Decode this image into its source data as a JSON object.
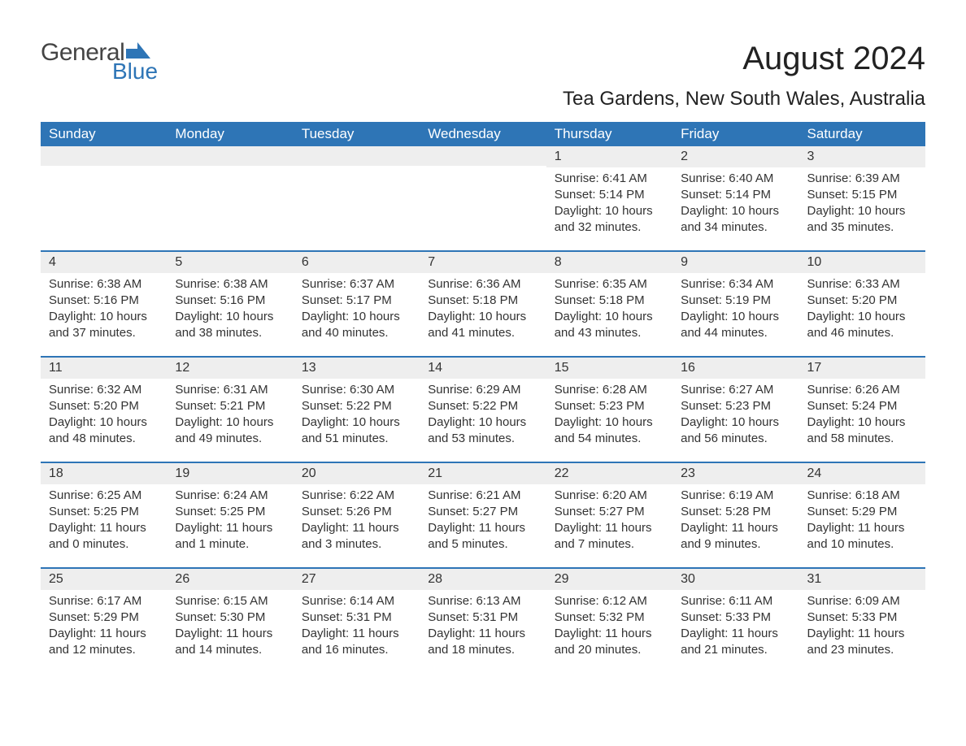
{
  "logo": {
    "text_general": "General",
    "text_blue": "Blue",
    "accent_color": "#2e75b6",
    "text_color_general": "#444444"
  },
  "title": "August 2024",
  "subtitle": "Tea Gardens, New South Wales, Australia",
  "colors": {
    "header_bg": "#2e75b6",
    "header_text": "#ffffff",
    "daynum_bg": "#eeeeee",
    "body_text": "#333333",
    "page_bg": "#ffffff",
    "week_divider": "#2e75b6"
  },
  "typography": {
    "title_fontsize": 40,
    "subtitle_fontsize": 24,
    "header_fontsize": 17,
    "body_fontsize": 15,
    "font_family": "Arial, Helvetica, sans-serif"
  },
  "calendar": {
    "type": "table",
    "columns": [
      "Sunday",
      "Monday",
      "Tuesday",
      "Wednesday",
      "Thursday",
      "Friday",
      "Saturday"
    ],
    "weeks": [
      [
        {
          "day": "",
          "sunrise": "",
          "sunset": "",
          "daylight": ""
        },
        {
          "day": "",
          "sunrise": "",
          "sunset": "",
          "daylight": ""
        },
        {
          "day": "",
          "sunrise": "",
          "sunset": "",
          "daylight": ""
        },
        {
          "day": "",
          "sunrise": "",
          "sunset": "",
          "daylight": ""
        },
        {
          "day": "1",
          "sunrise": "Sunrise: 6:41 AM",
          "sunset": "Sunset: 5:14 PM",
          "daylight": "Daylight: 10 hours and 32 minutes."
        },
        {
          "day": "2",
          "sunrise": "Sunrise: 6:40 AM",
          "sunset": "Sunset: 5:14 PM",
          "daylight": "Daylight: 10 hours and 34 minutes."
        },
        {
          "day": "3",
          "sunrise": "Sunrise: 6:39 AM",
          "sunset": "Sunset: 5:15 PM",
          "daylight": "Daylight: 10 hours and 35 minutes."
        }
      ],
      [
        {
          "day": "4",
          "sunrise": "Sunrise: 6:38 AM",
          "sunset": "Sunset: 5:16 PM",
          "daylight": "Daylight: 10 hours and 37 minutes."
        },
        {
          "day": "5",
          "sunrise": "Sunrise: 6:38 AM",
          "sunset": "Sunset: 5:16 PM",
          "daylight": "Daylight: 10 hours and 38 minutes."
        },
        {
          "day": "6",
          "sunrise": "Sunrise: 6:37 AM",
          "sunset": "Sunset: 5:17 PM",
          "daylight": "Daylight: 10 hours and 40 minutes."
        },
        {
          "day": "7",
          "sunrise": "Sunrise: 6:36 AM",
          "sunset": "Sunset: 5:18 PM",
          "daylight": "Daylight: 10 hours and 41 minutes."
        },
        {
          "day": "8",
          "sunrise": "Sunrise: 6:35 AM",
          "sunset": "Sunset: 5:18 PM",
          "daylight": "Daylight: 10 hours and 43 minutes."
        },
        {
          "day": "9",
          "sunrise": "Sunrise: 6:34 AM",
          "sunset": "Sunset: 5:19 PM",
          "daylight": "Daylight: 10 hours and 44 minutes."
        },
        {
          "day": "10",
          "sunrise": "Sunrise: 6:33 AM",
          "sunset": "Sunset: 5:20 PM",
          "daylight": "Daylight: 10 hours and 46 minutes."
        }
      ],
      [
        {
          "day": "11",
          "sunrise": "Sunrise: 6:32 AM",
          "sunset": "Sunset: 5:20 PM",
          "daylight": "Daylight: 10 hours and 48 minutes."
        },
        {
          "day": "12",
          "sunrise": "Sunrise: 6:31 AM",
          "sunset": "Sunset: 5:21 PM",
          "daylight": "Daylight: 10 hours and 49 minutes."
        },
        {
          "day": "13",
          "sunrise": "Sunrise: 6:30 AM",
          "sunset": "Sunset: 5:22 PM",
          "daylight": "Daylight: 10 hours and 51 minutes."
        },
        {
          "day": "14",
          "sunrise": "Sunrise: 6:29 AM",
          "sunset": "Sunset: 5:22 PM",
          "daylight": "Daylight: 10 hours and 53 minutes."
        },
        {
          "day": "15",
          "sunrise": "Sunrise: 6:28 AM",
          "sunset": "Sunset: 5:23 PM",
          "daylight": "Daylight: 10 hours and 54 minutes."
        },
        {
          "day": "16",
          "sunrise": "Sunrise: 6:27 AM",
          "sunset": "Sunset: 5:23 PM",
          "daylight": "Daylight: 10 hours and 56 minutes."
        },
        {
          "day": "17",
          "sunrise": "Sunrise: 6:26 AM",
          "sunset": "Sunset: 5:24 PM",
          "daylight": "Daylight: 10 hours and 58 minutes."
        }
      ],
      [
        {
          "day": "18",
          "sunrise": "Sunrise: 6:25 AM",
          "sunset": "Sunset: 5:25 PM",
          "daylight": "Daylight: 11 hours and 0 minutes."
        },
        {
          "day": "19",
          "sunrise": "Sunrise: 6:24 AM",
          "sunset": "Sunset: 5:25 PM",
          "daylight": "Daylight: 11 hours and 1 minute."
        },
        {
          "day": "20",
          "sunrise": "Sunrise: 6:22 AM",
          "sunset": "Sunset: 5:26 PM",
          "daylight": "Daylight: 11 hours and 3 minutes."
        },
        {
          "day": "21",
          "sunrise": "Sunrise: 6:21 AM",
          "sunset": "Sunset: 5:27 PM",
          "daylight": "Daylight: 11 hours and 5 minutes."
        },
        {
          "day": "22",
          "sunrise": "Sunrise: 6:20 AM",
          "sunset": "Sunset: 5:27 PM",
          "daylight": "Daylight: 11 hours and 7 minutes."
        },
        {
          "day": "23",
          "sunrise": "Sunrise: 6:19 AM",
          "sunset": "Sunset: 5:28 PM",
          "daylight": "Daylight: 11 hours and 9 minutes."
        },
        {
          "day": "24",
          "sunrise": "Sunrise: 6:18 AM",
          "sunset": "Sunset: 5:29 PM",
          "daylight": "Daylight: 11 hours and 10 minutes."
        }
      ],
      [
        {
          "day": "25",
          "sunrise": "Sunrise: 6:17 AM",
          "sunset": "Sunset: 5:29 PM",
          "daylight": "Daylight: 11 hours and 12 minutes."
        },
        {
          "day": "26",
          "sunrise": "Sunrise: 6:15 AM",
          "sunset": "Sunset: 5:30 PM",
          "daylight": "Daylight: 11 hours and 14 minutes."
        },
        {
          "day": "27",
          "sunrise": "Sunrise: 6:14 AM",
          "sunset": "Sunset: 5:31 PM",
          "daylight": "Daylight: 11 hours and 16 minutes."
        },
        {
          "day": "28",
          "sunrise": "Sunrise: 6:13 AM",
          "sunset": "Sunset: 5:31 PM",
          "daylight": "Daylight: 11 hours and 18 minutes."
        },
        {
          "day": "29",
          "sunrise": "Sunrise: 6:12 AM",
          "sunset": "Sunset: 5:32 PM",
          "daylight": "Daylight: 11 hours and 20 minutes."
        },
        {
          "day": "30",
          "sunrise": "Sunrise: 6:11 AM",
          "sunset": "Sunset: 5:33 PM",
          "daylight": "Daylight: 11 hours and 21 minutes."
        },
        {
          "day": "31",
          "sunrise": "Sunrise: 6:09 AM",
          "sunset": "Sunset: 5:33 PM",
          "daylight": "Daylight: 11 hours and 23 minutes."
        }
      ]
    ]
  }
}
